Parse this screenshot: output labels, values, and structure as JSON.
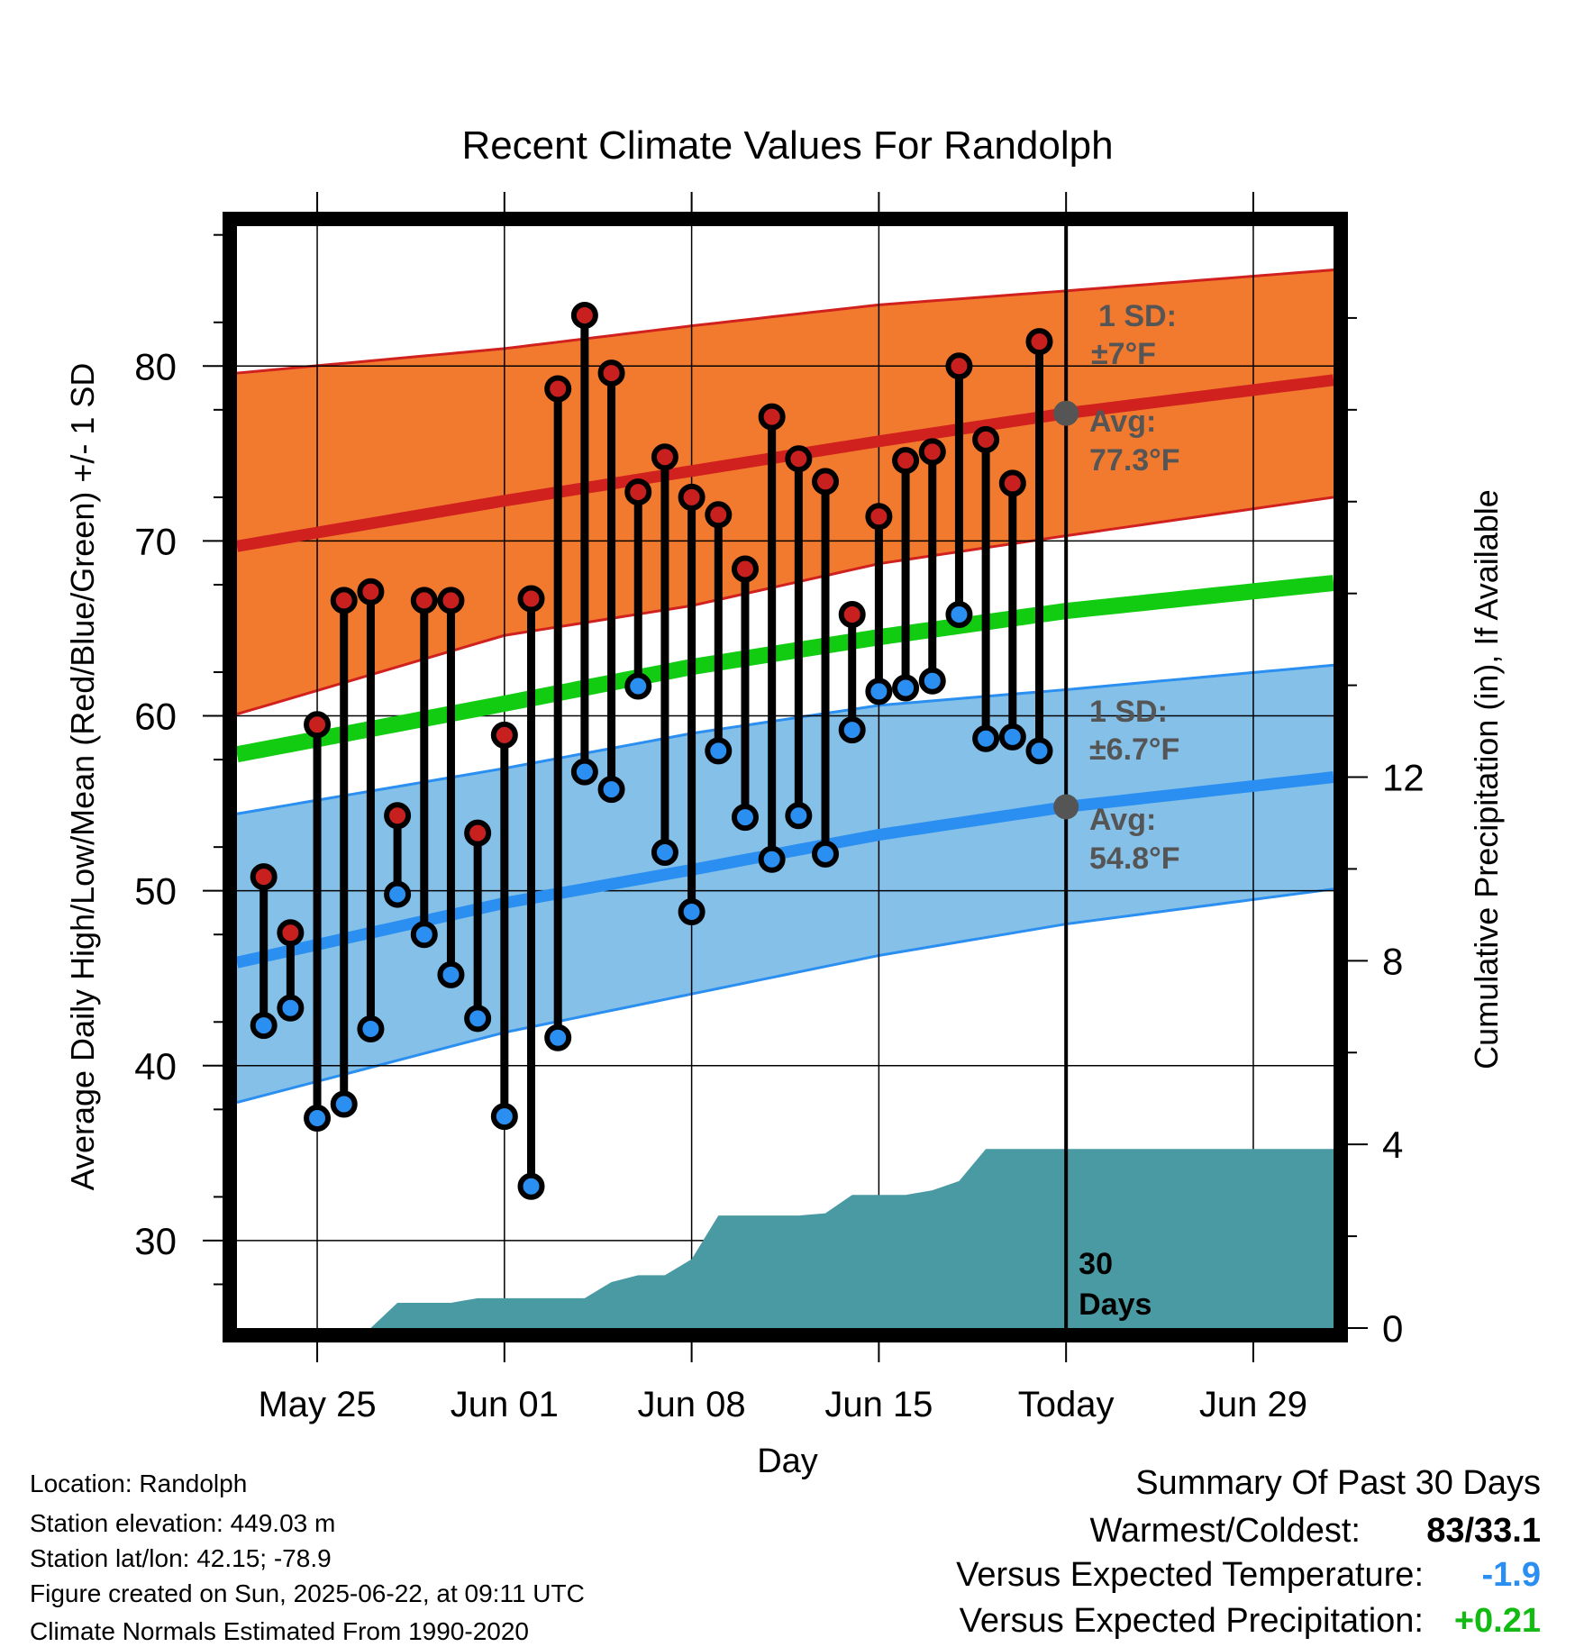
{
  "chart_data": {
    "type": "line",
    "title": "Recent Climate Values For Randolph",
    "xlabel": "Day",
    "ylabel": "Average Daily High/Low/Mean (Red/Blue/Green) +/- 1 SD",
    "y2label": "Cumulative Precipitation (in), If Available",
    "ylim": [
      25,
      88
    ],
    "y2lim": [
      0,
      24
    ],
    "yticks": [
      30,
      40,
      50,
      60,
      70,
      80
    ],
    "y2ticks": [
      0,
      4,
      8,
      12
    ],
    "xlim": [
      "2025-05-22",
      "2025-07-02"
    ],
    "xticks": [
      {
        "date": "2025-05-25",
        "label": "May 25"
      },
      {
        "date": "2025-06-01",
        "label": "Jun 01"
      },
      {
        "date": "2025-06-08",
        "label": "Jun 08"
      },
      {
        "date": "2025-06-15",
        "label": "Jun 15"
      },
      {
        "date": "2025-06-22",
        "label": "Today"
      },
      {
        "date": "2025-06-29",
        "label": "Jun 29"
      }
    ],
    "grid": true,
    "today_marker": {
      "date": "2025-06-22",
      "label_line1": "30",
      "label_line2": "Days"
    },
    "normals": {
      "dates": [
        "2025-05-22",
        "2025-06-01",
        "2025-06-08",
        "2025-06-15",
        "2025-06-22",
        "2025-07-02"
      ],
      "high_avg": [
        69.7,
        72.3,
        74.0,
        75.7,
        77.3,
        79.2
      ],
      "high_upper": [
        79.6,
        81.0,
        82.3,
        83.5,
        84.3,
        85.5
      ],
      "high_lower": [
        60.1,
        64.6,
        66.3,
        68.7,
        70.3,
        72.5
      ],
      "mean_avg": [
        57.8,
        60.7,
        62.8,
        64.5,
        66.0,
        67.6
      ],
      "low_avg": [
        45.9,
        49.3,
        51.2,
        53.2,
        54.8,
        56.5
      ],
      "low_upper": [
        54.4,
        57.0,
        59.0,
        60.6,
        61.5,
        62.9
      ],
      "low_lower": [
        37.9,
        41.9,
        44.1,
        46.3,
        48.1,
        50.1
      ]
    },
    "series": [
      {
        "name": "High",
        "color": "#c8201f",
        "values": [
          50.8,
          47.6,
          59.5,
          66.6,
          67.1,
          54.3,
          66.6,
          66.6,
          53.3,
          58.9,
          66.7,
          78.7,
          82.9,
          79.6,
          72.8,
          74.8,
          72.5,
          71.5,
          68.4,
          77.1,
          74.7,
          73.4,
          65.8,
          71.4,
          74.6,
          75.1,
          80.0,
          75.8,
          73.3,
          81.4
        ]
      },
      {
        "name": "Low",
        "color": "#2a8ff0",
        "values": [
          42.3,
          43.3,
          37.0,
          37.8,
          42.1,
          49.8,
          47.5,
          45.2,
          42.7,
          37.1,
          33.1,
          41.6,
          56.8,
          55.8,
          61.7,
          52.2,
          48.8,
          58.0,
          54.2,
          51.8,
          54.3,
          52.1,
          59.2,
          61.4,
          61.6,
          62.0,
          65.8,
          58.7,
          58.8,
          58.0
        ]
      },
      {
        "name": "Cumulative Precipitation",
        "color": "#4a9aa4",
        "x": [
          "2025-05-23",
          "2025-05-24",
          "2025-05-25",
          "2025-05-26",
          "2025-05-27",
          "2025-05-28",
          "2025-05-29",
          "2025-05-30",
          "2025-05-31",
          "2025-06-01",
          "2025-06-02",
          "2025-06-03",
          "2025-06-04",
          "2025-06-05",
          "2025-06-06",
          "2025-06-07",
          "2025-06-08",
          "2025-06-09",
          "2025-06-10",
          "2025-06-11",
          "2025-06-12",
          "2025-06-13",
          "2025-06-14",
          "2025-06-15",
          "2025-06-16",
          "2025-06-17",
          "2025-06-18",
          "2025-06-19",
          "2025-06-20",
          "2025-06-21",
          "2025-06-22",
          "2025-07-02"
        ],
        "values": [
          0.0,
          0.0,
          0.0,
          0.0,
          0.0,
          0.55,
          0.55,
          0.55,
          0.65,
          0.65,
          0.65,
          0.65,
          0.65,
          1.0,
          1.15,
          1.15,
          1.5,
          2.45,
          2.45,
          2.45,
          2.45,
          2.5,
          2.9,
          2.9,
          2.9,
          3.0,
          3.2,
          3.9,
          3.9,
          3.9,
          3.9,
          3.9
        ]
      }
    ],
    "low_dates_start": "2025-05-22",
    "annotations": {
      "high_sd_line1": "1 SD:",
      "high_sd_line2": "±7°F",
      "high_avg_line1": "Avg:",
      "high_avg_line2": "77.3°F",
      "high_avg_value": 77.3,
      "low_sd_line1": "1 SD:",
      "low_sd_line2": "±6.7°F",
      "low_avg_line1": "Avg:",
      "low_avg_line2": "54.8°F",
      "low_avg_value": 54.8
    },
    "colors": {
      "high_band": "#f27a2e",
      "high_line": "#d0211f",
      "mean_line": "#11cc11",
      "low_band": "#84c0e8",
      "low_line": "#2a8ff0",
      "precip": "#4a9aa4",
      "annotation_text": "#555555"
    }
  },
  "footer": {
    "location": "Location: Randolph",
    "elevation": "Station elevation: 449.03 m",
    "latlon": "Station lat/lon: 42.15; -78.9",
    "created": "Figure created on Sun, 2025-06-22, at 09:11 UTC",
    "normals": "Climate Normals Estimated From 1990-2020"
  },
  "summary": {
    "title": "Summary Of Past 30 Days",
    "warmest_label": "Warmest/Coldest:",
    "warmest_value": "83/33.1",
    "temp_label": "Versus Expected Temperature:",
    "temp_value": "-1.9",
    "temp_color": "#2a8ff0",
    "precip_label": "Versus Expected Precipitation:",
    "precip_value": "+0.21",
    "precip_color": "#11bb11"
  }
}
